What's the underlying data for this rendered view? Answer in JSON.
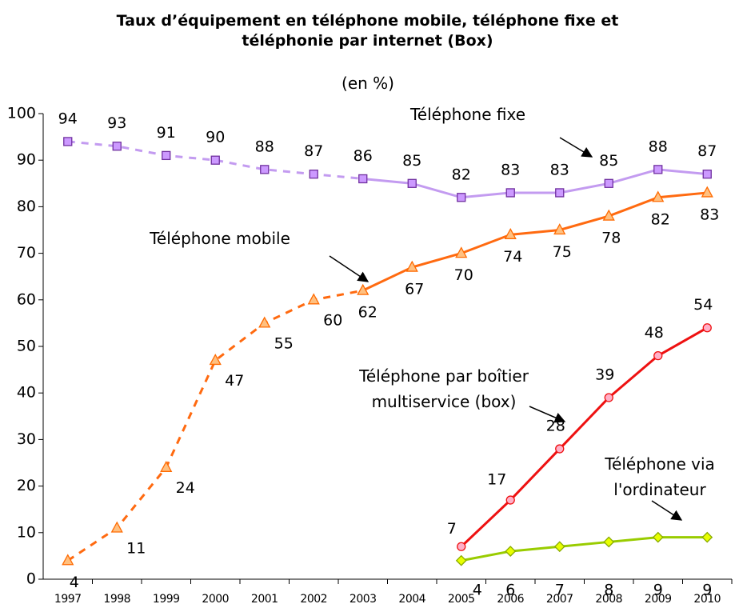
{
  "chart_data": {
    "type": "line",
    "title": "Taux d’équipement en téléphone mobile, téléphone fixe et téléphonie par internet (Box)",
    "subtitle": "(en %)",
    "x": [
      1997,
      1998,
      1999,
      2000,
      2001,
      2002,
      2003,
      2004,
      2005,
      2006,
      2007,
      2008,
      2009,
      2010
    ],
    "xlim": [
      1996.5,
      2010.5
    ],
    "ylim": [
      0,
      100
    ],
    "yticks": [
      0,
      10,
      20,
      30,
      40,
      50,
      60,
      70,
      80,
      90,
      100
    ],
    "grid": false,
    "series": [
      {
        "name": "Téléphone fixe",
        "color": "#c39bf0",
        "marker": "square",
        "marker_fill": "#cc99ff",
        "marker_stroke": "#7030a0",
        "dashed_until": 2003,
        "values": [
          94,
          93,
          91,
          90,
          88,
          87,
          86,
          85,
          82,
          83,
          83,
          85,
          88,
          87
        ]
      },
      {
        "name": "Téléphone mobile",
        "color": "#ff6a10",
        "marker": "triangle",
        "marker_fill": "#ffc080",
        "marker_stroke": "#ff6a00",
        "dashed_until": 2003,
        "values": [
          4,
          11,
          24,
          47,
          55,
          60,
          62,
          67,
          70,
          74,
          75,
          78,
          82,
          83
        ]
      },
      {
        "name": "Téléphone par boîtier multiservice (box)",
        "color": "#ee1111",
        "marker": "circle",
        "marker_fill": "#ffb0c8",
        "marker_stroke": "#ee1111",
        "values": [
          null,
          null,
          null,
          null,
          null,
          null,
          null,
          null,
          7,
          17,
          28,
          39,
          48,
          54
        ]
      },
      {
        "name": "Téléphone via l'ordinateur",
        "color": "#99cc00",
        "marker": "diamond",
        "marker_fill": "#e8ff00",
        "marker_stroke": "#88aa00",
        "values": [
          null,
          null,
          null,
          null,
          null,
          null,
          null,
          null,
          4,
          6,
          7,
          8,
          9,
          9
        ]
      }
    ]
  }
}
